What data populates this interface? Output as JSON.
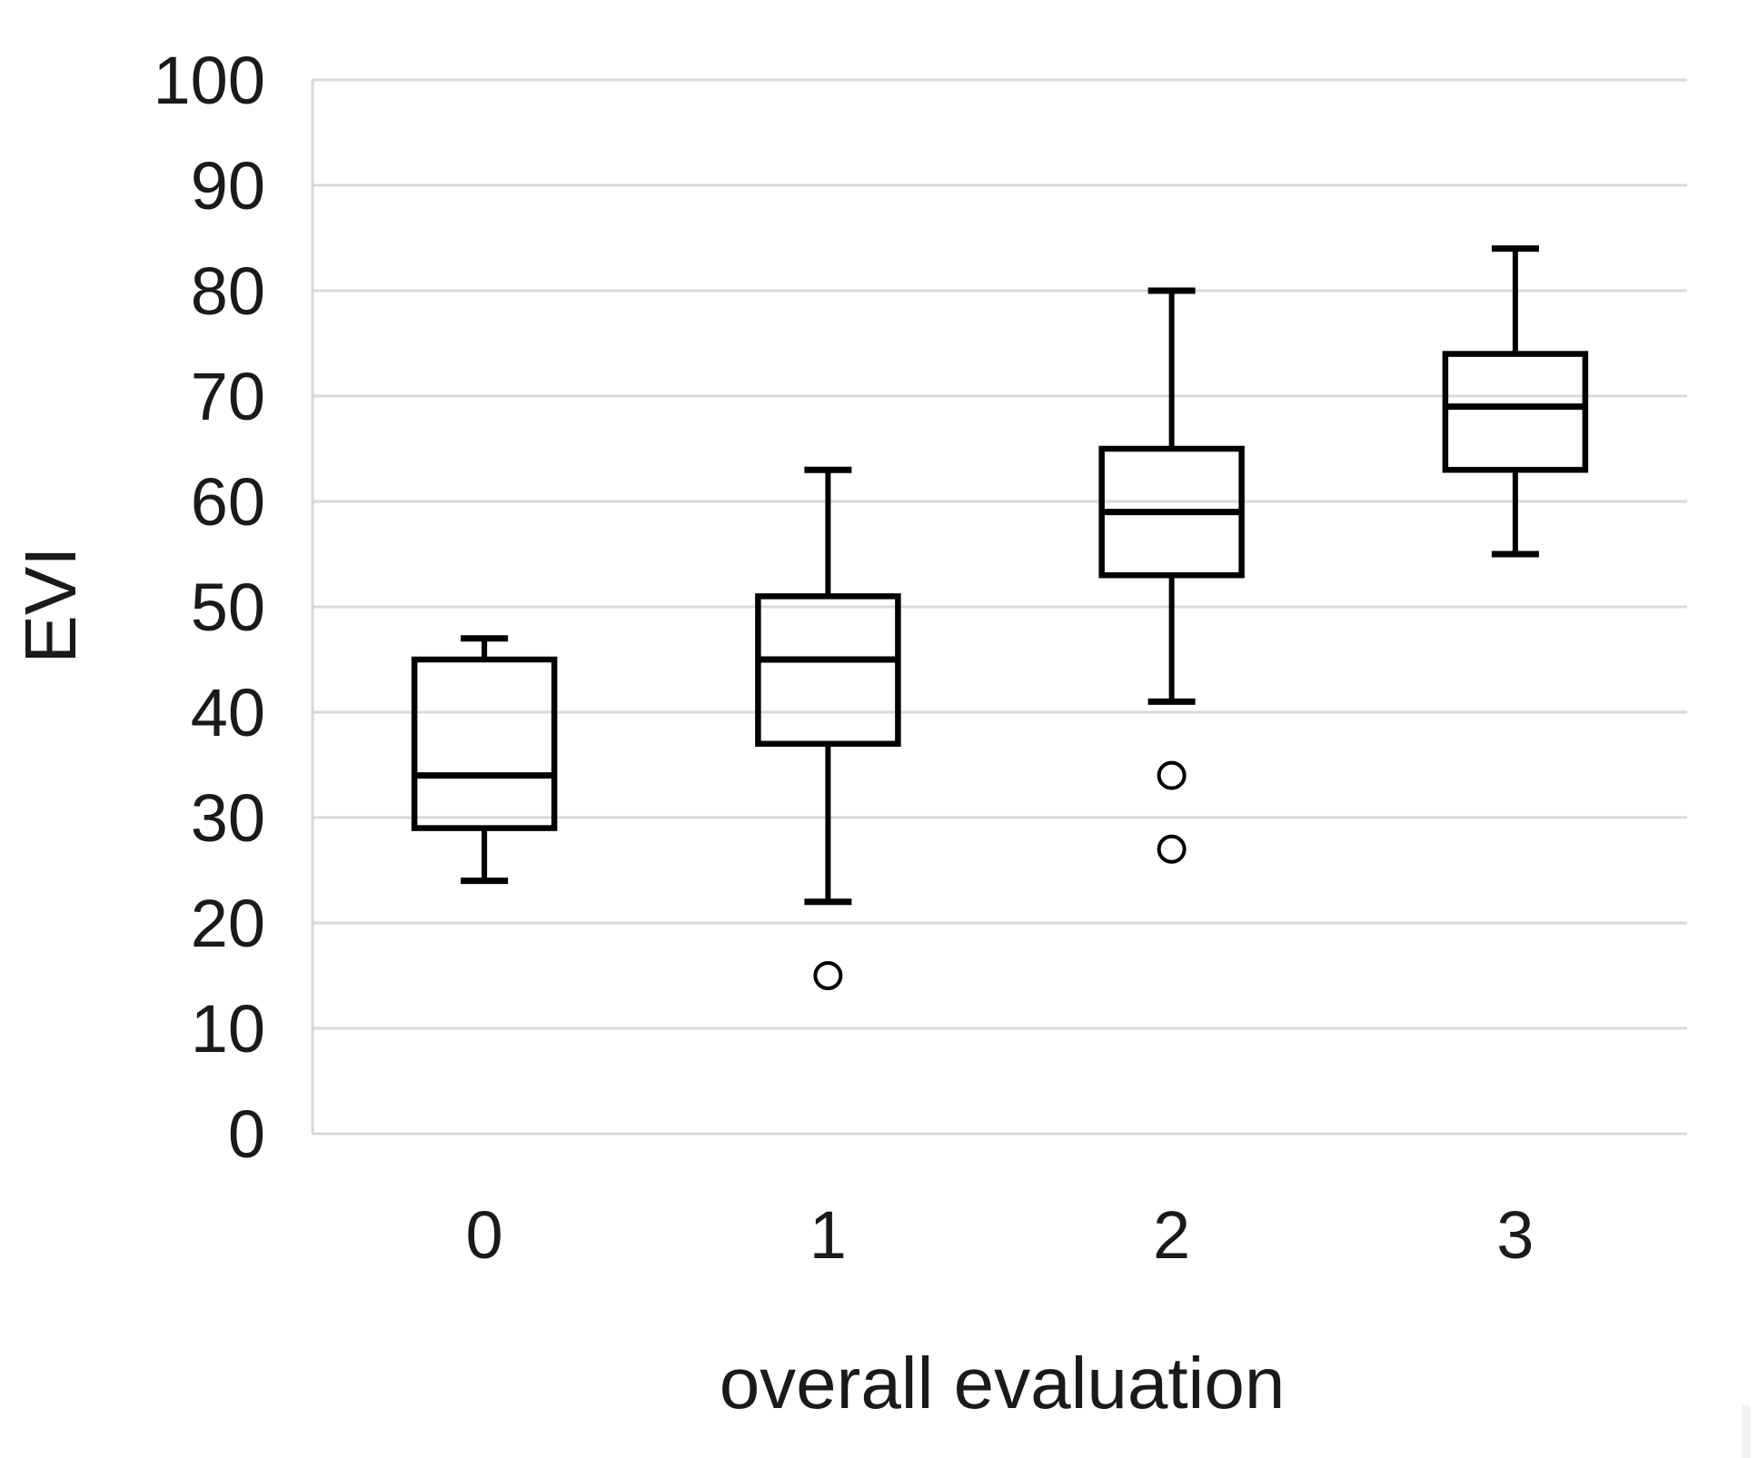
{
  "figure": {
    "background_color": "#ffffff"
  },
  "chart_data": {
    "type": "box",
    "title": "",
    "xlabel": "overall evaluation",
    "ylabel": "EVI",
    "categories": [
      "0",
      "1",
      "2",
      "3"
    ],
    "ylim": [
      0,
      100
    ],
    "y_ticks": [
      0,
      10,
      20,
      30,
      40,
      50,
      60,
      70,
      80,
      90,
      100
    ],
    "grid": "horizontal",
    "legend": "none",
    "series": [
      {
        "category": "0",
        "min": 24,
        "q1": 29,
        "median": 34,
        "q3": 45,
        "max": 47,
        "outliers": []
      },
      {
        "category": "1",
        "min": 22,
        "q1": 37,
        "median": 45,
        "q3": 51,
        "max": 63,
        "outliers": [
          15
        ]
      },
      {
        "category": "2",
        "min": 41,
        "q1": 53,
        "median": 59,
        "q3": 65,
        "max": 80,
        "outliers": [
          34,
          27
        ]
      },
      {
        "category": "3",
        "min": 55,
        "q1": 63,
        "median": 69,
        "q3": 74,
        "max": 84,
        "outliers": []
      }
    ],
    "colors": {
      "box_stroke": "#000000",
      "gridline": "#d9d9d9",
      "background": "#ffffff",
      "text": "#1a1a1a"
    }
  }
}
